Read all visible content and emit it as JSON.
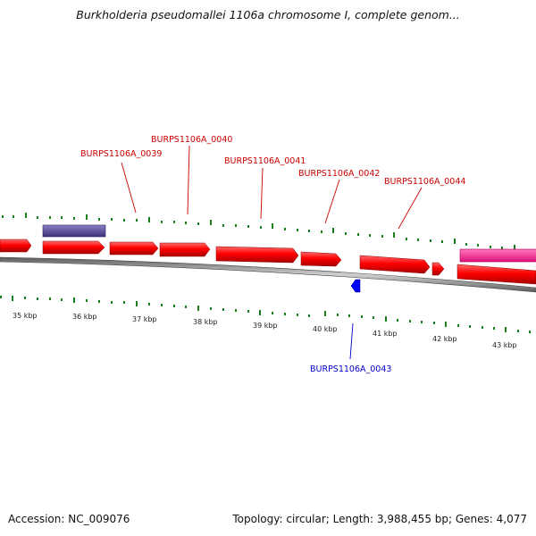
{
  "title": "Burkholderia pseudomallei 1106a chromosome I, complete genom...",
  "footer": {
    "accession": "Accession: NC_009076",
    "summary": "Topology: circular; Length: 3,988,455 bp; Genes: 4,077"
  },
  "colors": {
    "forward_gene": "#ff0000",
    "reverse_gene": "#0000ff",
    "rna_feature": "#4b3f8f",
    "other_feature": "#ff3399",
    "tick": "#1a7f1a",
    "backbone": "#808080"
  },
  "scale": {
    "labels": [
      "35 kbp",
      "36 kbp",
      "37 kbp",
      "38 kbp",
      "39 kbp",
      "40 kbp",
      "41 kbp",
      "42 kbp",
      "43 kbp"
    ]
  },
  "genes": [
    {
      "label": "BURPS1106A_0039",
      "strand": "forward"
    },
    {
      "label": "BURPS1106A_0040",
      "strand": "forward"
    },
    {
      "label": "BURPS1106A_0041",
      "strand": "forward"
    },
    {
      "label": "BURPS1106A_0042",
      "strand": "forward"
    },
    {
      "label": "BURPS1106A_0043",
      "strand": "reverse"
    },
    {
      "label": "BURPS1106A_0044",
      "strand": "forward"
    }
  ]
}
